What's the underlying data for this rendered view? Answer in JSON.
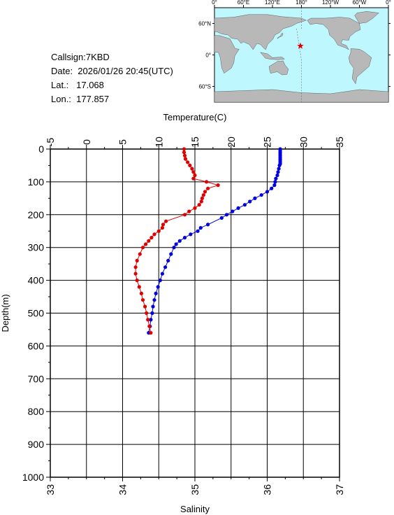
{
  "info": {
    "callsign": "Callsign:7KBD",
    "date": "Date:  2026/01/26 20:45(UTC)",
    "lat": "Lat.:   17.068",
    "lon": "Lon.:  177.857"
  },
  "map": {
    "top_labels": [
      "0°",
      "60°E",
      "120°E",
      "180°",
      "120°W",
      "60°W",
      "0°"
    ],
    "left_labels": [
      "60°N",
      "0°",
      "60°S"
    ],
    "ocean_color": "#bff7ff",
    "land_color": "#b8b8b8",
    "marker": {
      "lon": 177.857,
      "lat": 17.068,
      "color": "#e00000",
      "icon": "star-icon"
    }
  },
  "chart_data": {
    "type": "line",
    "xlabel_top": "Temperature(C)",
    "xlabel_bottom": "Salinity",
    "ylabel": "Depth(m)",
    "temperature_ticks": [
      "-5",
      "0",
      "5",
      "10",
      "15",
      "20",
      "25",
      "30",
      "35"
    ],
    "temperature_lim": [
      -5,
      35
    ],
    "salinity_ticks": [
      "33",
      "34",
      "35",
      "36",
      "37"
    ],
    "salinity_lim": [
      33,
      37
    ],
    "depth_ticks": [
      "0",
      "100",
      "200",
      "300",
      "400",
      "500",
      "600",
      "700",
      "800",
      "900",
      "1000"
    ],
    "depth_lim": [
      0,
      1000
    ],
    "grid": true,
    "series": [
      {
        "axis": "temperature",
        "color": "#0000e0",
        "points": [
          [
            26.8,
            0
          ],
          [
            26.8,
            5
          ],
          [
            26.8,
            10
          ],
          [
            26.8,
            15
          ],
          [
            26.8,
            20
          ],
          [
            26.8,
            25
          ],
          [
            26.8,
            30
          ],
          [
            26.8,
            35
          ],
          [
            26.8,
            40
          ],
          [
            26.8,
            45
          ],
          [
            26.7,
            50
          ],
          [
            26.6,
            60
          ],
          [
            26.5,
            70
          ],
          [
            26.4,
            80
          ],
          [
            26.2,
            90
          ],
          [
            26.1,
            100
          ],
          [
            26.0,
            110
          ],
          [
            25.6,
            120
          ],
          [
            25.0,
            130
          ],
          [
            24.2,
            140
          ],
          [
            23.3,
            150
          ],
          [
            22.6,
            160
          ],
          [
            21.9,
            170
          ],
          [
            21.0,
            180
          ],
          [
            20.2,
            190
          ],
          [
            19.4,
            200
          ],
          [
            18.7,
            210
          ],
          [
            16.8,
            230
          ],
          [
            15.8,
            240
          ],
          [
            15.4,
            250
          ],
          [
            14.4,
            260
          ],
          [
            13.6,
            270
          ],
          [
            12.9,
            280
          ],
          [
            12.4,
            290
          ],
          [
            12.1,
            300
          ],
          [
            11.7,
            320
          ],
          [
            11.3,
            340
          ],
          [
            10.9,
            360
          ],
          [
            10.5,
            380
          ],
          [
            10.2,
            400
          ],
          [
            9.9,
            420
          ],
          [
            9.6,
            440
          ],
          [
            9.4,
            460
          ],
          [
            9.2,
            480
          ],
          [
            9.1,
            500
          ],
          [
            8.9,
            520
          ],
          [
            8.8,
            540
          ],
          [
            8.6,
            560
          ]
        ]
      },
      {
        "axis": "salinity",
        "color": "#e00000",
        "points": [
          [
            34.85,
            0
          ],
          [
            34.85,
            10
          ],
          [
            34.86,
            20
          ],
          [
            34.87,
            30
          ],
          [
            34.9,
            40
          ],
          [
            34.93,
            50
          ],
          [
            34.96,
            60
          ],
          [
            34.98,
            70
          ],
          [
            35.0,
            80
          ],
          [
            34.98,
            90
          ],
          [
            35.16,
            100
          ],
          [
            35.32,
            110
          ],
          [
            35.18,
            120
          ],
          [
            35.14,
            130
          ],
          [
            35.12,
            140
          ],
          [
            35.1,
            150
          ],
          [
            35.09,
            160
          ],
          [
            35.06,
            170
          ],
          [
            35.0,
            180
          ],
          [
            34.92,
            190
          ],
          [
            34.86,
            200
          ],
          [
            34.6,
            220
          ],
          [
            34.56,
            230
          ],
          [
            34.55,
            240
          ],
          [
            34.5,
            250
          ],
          [
            34.44,
            260
          ],
          [
            34.4,
            270
          ],
          [
            34.36,
            280
          ],
          [
            34.32,
            290
          ],
          [
            34.28,
            300
          ],
          [
            34.24,
            320
          ],
          [
            34.2,
            340
          ],
          [
            34.18,
            360
          ],
          [
            34.18,
            380
          ],
          [
            34.2,
            400
          ],
          [
            34.23,
            420
          ],
          [
            34.26,
            440
          ],
          [
            34.28,
            460
          ],
          [
            34.31,
            480
          ],
          [
            34.33,
            500
          ],
          [
            34.35,
            520
          ],
          [
            34.37,
            540
          ],
          [
            34.39,
            560
          ]
        ]
      }
    ]
  }
}
